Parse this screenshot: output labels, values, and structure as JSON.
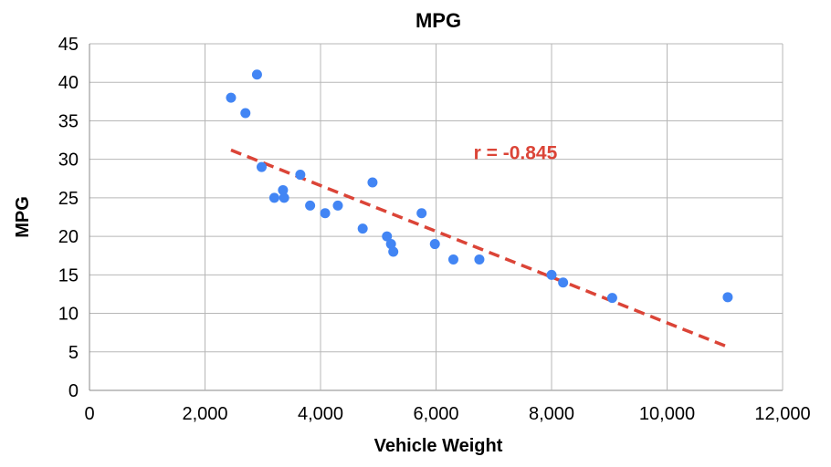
{
  "chart_data": {
    "type": "scatter",
    "title": "MPG",
    "xlabel": "Vehicle Weight",
    "ylabel": "MPG",
    "xlim": [
      0,
      12000
    ],
    "ylim": [
      0,
      45
    ],
    "x_ticks": [
      0,
      2000,
      4000,
      6000,
      8000,
      10000,
      12000
    ],
    "x_tick_labels": [
      "0",
      "2,000",
      "4,000",
      "6,000",
      "8,000",
      "10,000",
      "12,000"
    ],
    "y_ticks": [
      0,
      5,
      10,
      15,
      20,
      25,
      30,
      35,
      40,
      45
    ],
    "y_tick_labels": [
      "0",
      "5",
      "10",
      "15",
      "20",
      "25",
      "30",
      "35",
      "40",
      "45"
    ],
    "grid": true,
    "series": [
      {
        "color": "#4285f4",
        "points": [
          {
            "x": 2450,
            "y": 38
          },
          {
            "x": 2700,
            "y": 36
          },
          {
            "x": 2900,
            "y": 41
          },
          {
            "x": 2980,
            "y": 29
          },
          {
            "x": 3200,
            "y": 25
          },
          {
            "x": 3350,
            "y": 26
          },
          {
            "x": 3370,
            "y": 25
          },
          {
            "x": 3650,
            "y": 28
          },
          {
            "x": 3820,
            "y": 24
          },
          {
            "x": 4080,
            "y": 23
          },
          {
            "x": 4300,
            "y": 24
          },
          {
            "x": 4730,
            "y": 21
          },
          {
            "x": 4900,
            "y": 27
          },
          {
            "x": 5150,
            "y": 20
          },
          {
            "x": 5220,
            "y": 19
          },
          {
            "x": 5260,
            "y": 18
          },
          {
            "x": 5750,
            "y": 23
          },
          {
            "x": 5980,
            "y": 19
          },
          {
            "x": 6300,
            "y": 17
          },
          {
            "x": 6750,
            "y": 17
          },
          {
            "x": 8000,
            "y": 15
          },
          {
            "x": 8200,
            "y": 14
          },
          {
            "x": 9050,
            "y": 12
          },
          {
            "x": 11050,
            "y": 12.1
          }
        ]
      }
    ],
    "trendline": {
      "style": "dashed",
      "color": "#db4437",
      "x_start": 2450,
      "y_start": 31.2,
      "x_end": 11100,
      "y_end": 5.5
    },
    "annotation": {
      "text": "r = -0.845",
      "x": 6650,
      "y": 30.5,
      "color": "#db4437"
    }
  }
}
